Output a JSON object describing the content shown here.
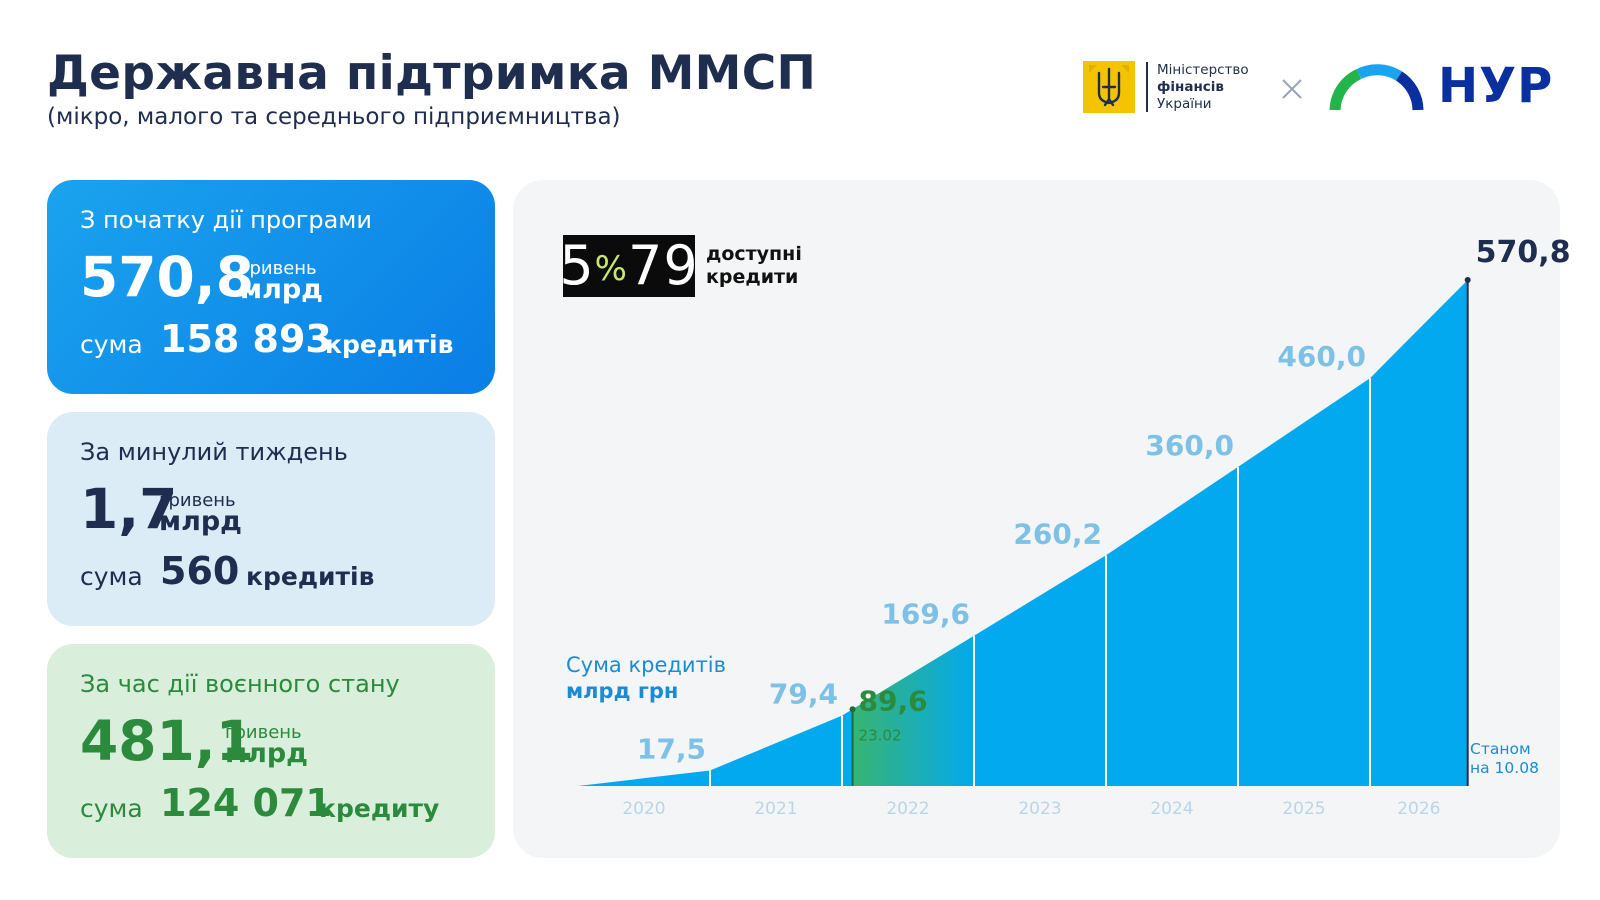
{
  "header": {
    "title": "Державна підтримка ММСП",
    "subtitle": "(мікро, малого та середнього підприємництва)"
  },
  "logos": {
    "minfin_line1": "Міністерство",
    "minfin_line2": "фінансів",
    "minfin_line3": "України",
    "partner_name": "НУР"
  },
  "cards": [
    {
      "title": "З початку дії програми",
      "amount": "570,8",
      "unit_small": "гривень",
      "unit_big": "млрд",
      "sum_label": "сума",
      "count": "158 893",
      "count_unit": "кредитів"
    },
    {
      "title": "За минулий тиждень",
      "amount": "1,7",
      "unit_small": "гривень",
      "unit_big": "млрд",
      "sum_label": "сума",
      "count": "560",
      "count_unit": "кредитів"
    },
    {
      "title": "За час дії воєнного стану",
      "amount": "481,1",
      "unit_small": "гривень",
      "unit_big": "млрд",
      "sum_label": "сума",
      "count": "124 071",
      "count_unit": "кредиту"
    }
  ],
  "program": {
    "badge_main": "5",
    "badge_pct": "%",
    "badge_end": "79",
    "caption_line1": "доступні",
    "caption_line2": "кредити"
  },
  "chart_data": {
    "type": "area",
    "ylabel_line1": "Сума кредитів",
    "ylabel_line2": "млрд грн",
    "x": [
      "2020",
      "2021",
      "2022",
      "2023",
      "2024",
      "2025",
      "2026"
    ],
    "points": [
      {
        "x": 2020.0,
        "y": 0,
        "label": ""
      },
      {
        "x": 2021.0,
        "y": 17.5,
        "label": "17,5"
      },
      {
        "x": 2022.0,
        "y": 79.4,
        "label": "79,4"
      },
      {
        "x": 2023.0,
        "y": 169.6,
        "label": "169,6"
      },
      {
        "x": 2024.0,
        "y": 260.2,
        "label": "260,2"
      },
      {
        "x": 2025.0,
        "y": 360.0,
        "label": "360,0"
      },
      {
        "x": 2026.0,
        "y": 460.0,
        "label": "460,0"
      },
      {
        "x": 2026.74,
        "y": 570.8,
        "label": "570,8"
      }
    ],
    "marker": {
      "x": 2022.08,
      "y": 89.6,
      "label": "89,6",
      "date": "23.02"
    },
    "as_of_line1": "Станом",
    "as_of_line2": "на 10.08",
    "ylim": [
      0,
      570.8
    ],
    "colors": {
      "fill": "#03a9ee",
      "war_highlight": "#3bb56a",
      "labels": "#7ec1e6",
      "years": "#b8d5ea"
    }
  }
}
